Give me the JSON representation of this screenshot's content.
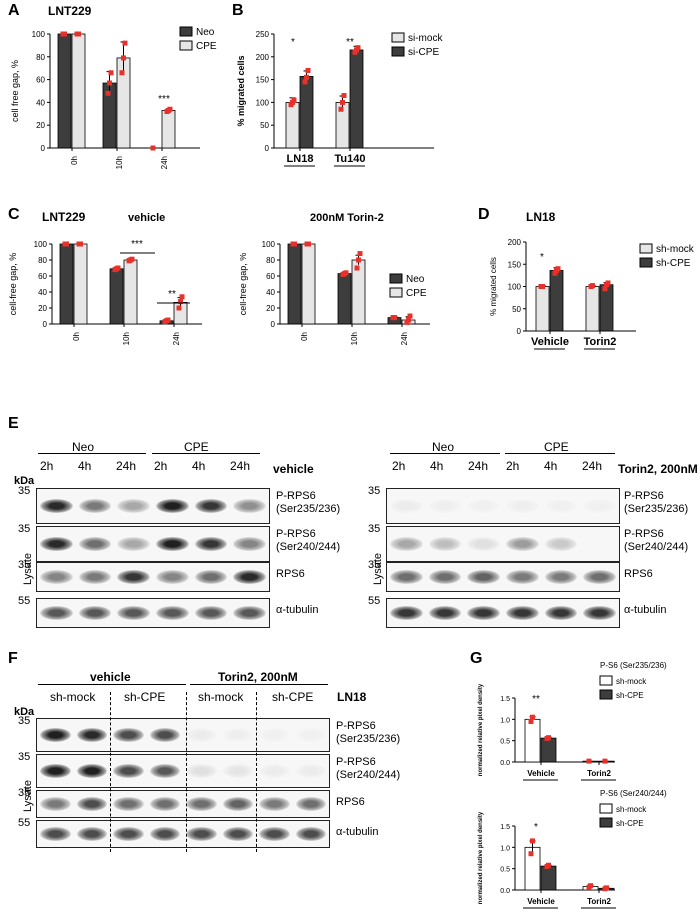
{
  "panels": {
    "A": {
      "letter": "A",
      "title": "LNT229",
      "ylabel": "cell free gap, %",
      "legend": [
        "Neo",
        "CPE"
      ],
      "xticks": [
        "0h",
        "10h",
        "24h"
      ],
      "yticks": [
        "0",
        "20",
        "40",
        "60",
        "80",
        "100"
      ],
      "sig": [
        "***"
      ]
    },
    "B": {
      "letter": "B",
      "ylabel": "% migrated cells",
      "legend": [
        "si-mock",
        "si-CPE"
      ],
      "xticks": [
        "LN18",
        "Tu140"
      ],
      "yticks": [
        "0",
        "50",
        "100",
        "150",
        "200",
        "250"
      ],
      "sig": [
        "*",
        "**"
      ]
    },
    "C": {
      "letter": "C",
      "title": "LNT229",
      "sub1": "vehicle",
      "sub2": "200nM Torin-2",
      "ylabel": "cell-free gap, %",
      "legend": [
        "Neo",
        "CPE"
      ],
      "xticks": [
        "0h",
        "10h",
        "24h"
      ],
      "yticks": [
        "0",
        "20",
        "40",
        "60",
        "80",
        "100"
      ],
      "sig1": [
        "***",
        "**"
      ]
    },
    "D": {
      "letter": "D",
      "title": "LN18",
      "ylabel": "% migrated cells",
      "legend": [
        "sh-mock",
        "sh-CPE"
      ],
      "xticks": [
        "Vehicle",
        "Torin2"
      ],
      "yticks": [
        "0",
        "50",
        "100",
        "150",
        "200"
      ],
      "sig": [
        "*"
      ]
    },
    "E": {
      "letter": "E",
      "groups": [
        "Neo",
        "CPE"
      ],
      "times": [
        "2h",
        "4h",
        "24h",
        "2h",
        "4h",
        "24h"
      ],
      "cond_left": "vehicle",
      "cond_right": "Torin2, 200nM",
      "kda": "kDa",
      "side": "Lysate",
      "rows": [
        {
          "mw": "35",
          "label": "P-RPS6\n(Ser235/236)"
        },
        {
          "mw": "35",
          "label": "P-RPS6\n(Ser240/244)"
        },
        {
          "mw": "35",
          "label": "RPS6"
        },
        {
          "mw": "55",
          "label": "α-tubulin"
        }
      ]
    },
    "F": {
      "letter": "F",
      "groups": [
        "vehicle",
        "Torin2, 200nM"
      ],
      "sub": [
        "sh-mock",
        "sh-CPE",
        "sh-mock",
        "sh-CPE"
      ],
      "cell": "LN18",
      "kda": "kDa",
      "side": "Lysate",
      "rows": [
        {
          "mw": "35",
          "label": "P-RPS6\n(Ser235/236)"
        },
        {
          "mw": "35",
          "label": "P-RPS6\n(Ser240/244)"
        },
        {
          "mw": "35",
          "label": "RPS6"
        },
        {
          "mw": "55",
          "label": "α-tubulin"
        }
      ]
    },
    "G": {
      "letter": "G",
      "title1": "P-S6 (Ser235/236)",
      "title2": "P-S6 (Ser240/244)",
      "legend": [
        "sh-mock",
        "sh-CPE"
      ],
      "ylabel": "normalized relative pixel density",
      "xticks": [
        "Vehicle",
        "Torin2"
      ],
      "yticks": [
        "0.0",
        "0.5",
        "1.0",
        "1.5"
      ],
      "sig1": [
        "**"
      ],
      "sig2": [
        "*"
      ]
    }
  },
  "colors": {
    "dark": "#3d3d3d",
    "light": "#e6e6e6",
    "red": "#e8312b"
  },
  "chart_data": [
    {
      "type": "bar",
      "panel": "A",
      "categories": [
        "0h",
        "10h",
        "24h"
      ],
      "series": [
        {
          "name": "Neo",
          "values": [
            100,
            57,
            0
          ]
        },
        {
          "name": "CPE",
          "values": [
            100,
            79,
            33
          ]
        }
      ],
      "ylabel": "cell free gap, %",
      "ylim": [
        0,
        100
      ]
    },
    {
      "type": "bar",
      "panel": "B",
      "categories": [
        "LN18",
        "Tu140"
      ],
      "series": [
        {
          "name": "si-mock",
          "values": [
            100,
            100
          ]
        },
        {
          "name": "si-CPE",
          "values": [
            157,
            215
          ]
        }
      ],
      "ylabel": "% migrated cells",
      "ylim": [
        0,
        250
      ]
    },
    {
      "type": "bar",
      "panel": "C-vehicle",
      "categories": [
        "0h",
        "10h",
        "24h"
      ],
      "series": [
        {
          "name": "Neo",
          "values": [
            100,
            69,
            4
          ]
        },
        {
          "name": "CPE",
          "values": [
            100,
            80,
            27
          ]
        }
      ],
      "ylabel": "cell-free gap, %",
      "ylim": [
        0,
        100
      ]
    },
    {
      "type": "bar",
      "panel": "C-Torin",
      "categories": [
        "0h",
        "10h",
        "24h"
      ],
      "series": [
        {
          "name": "Neo",
          "values": [
            100,
            63,
            8
          ]
        },
        {
          "name": "CPE",
          "values": [
            100,
            80,
            5
          ]
        }
      ],
      "ylabel": "cell-free gap, %",
      "ylim": [
        0,
        100
      ]
    },
    {
      "type": "bar",
      "panel": "D",
      "categories": [
        "Vehicle",
        "Torin2"
      ],
      "series": [
        {
          "name": "sh-mock",
          "values": [
            100,
            100
          ]
        },
        {
          "name": "sh-CPE",
          "values": [
            136,
            104
          ]
        }
      ],
      "ylabel": "% migrated cells",
      "ylim": [
        0,
        200
      ]
    },
    {
      "type": "bar",
      "panel": "G1",
      "categories": [
        "Vehicle",
        "Torin2"
      ],
      "series": [
        {
          "name": "sh-mock",
          "values": [
            1.0,
            0.02
          ]
        },
        {
          "name": "sh-CPE",
          "values": [
            0.56,
            0.02
          ]
        }
      ],
      "ylabel": "normalized relative pixel density",
      "ylim": [
        0,
        1.5
      ]
    },
    {
      "type": "bar",
      "panel": "G2",
      "categories": [
        "Vehicle",
        "Torin2"
      ],
      "series": [
        {
          "name": "sh-mock",
          "values": [
            1.0,
            0.08
          ]
        },
        {
          "name": "sh-CPE",
          "values": [
            0.56,
            0.04
          ]
        }
      ],
      "ylabel": "normalized relative pixel density",
      "ylim": [
        0,
        1.5
      ]
    }
  ]
}
